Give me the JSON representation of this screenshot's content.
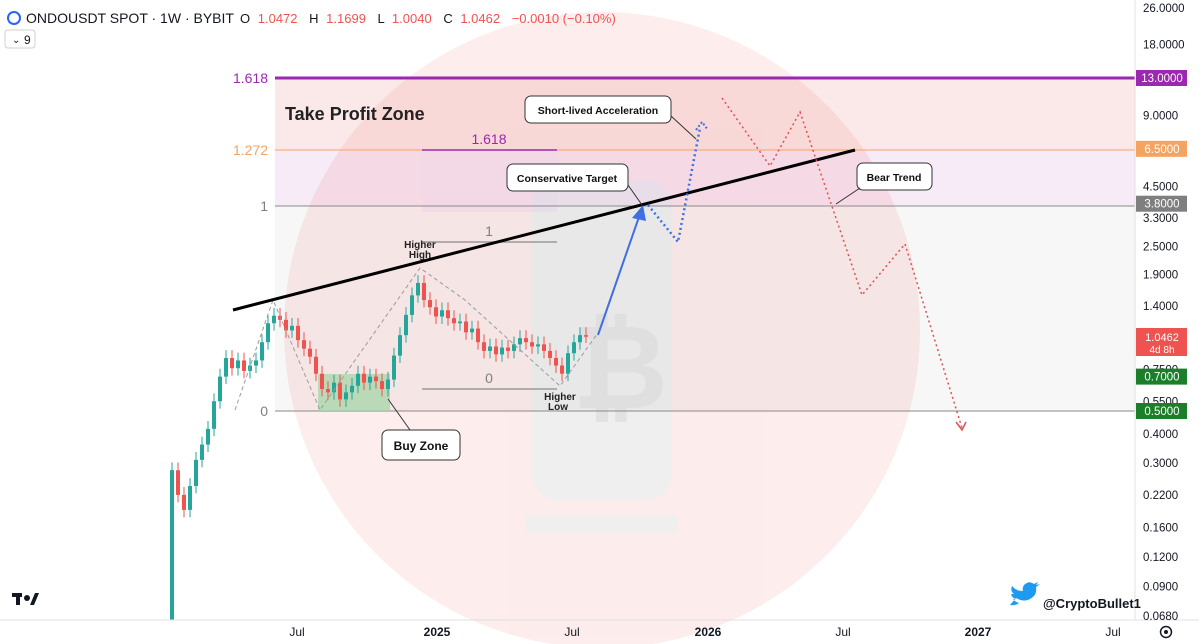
{
  "header": {
    "symbol": "ONDOUSDT SPOT · 1W · BYBIT",
    "o_label": "O",
    "o_value": "1.0472",
    "h_label": "H",
    "h_value": "1.1699",
    "l_label": "L",
    "l_value": "1.0040",
    "c_label": "C",
    "c_value": "1.0462",
    "change": "−0.0010 (−0.10%)",
    "indicator_toggle": "9"
  },
  "colors": {
    "up": "#26a69a",
    "down": "#ef5350",
    "fib_top": "#9c27b0",
    "fib_1272": "#f4a460",
    "label_gray": "#7f7f7f",
    "trendline": "#000000",
    "arrow_blue": "#3f6fe0",
    "projection_blue": "#3f6fe0",
    "projection_red": "#e05050",
    "price_red": "#ef5350",
    "price_green": "#1b7f2a"
  },
  "watermark": {
    "icon": "bitcoin-icon"
  },
  "branding": {
    "logo_icon": "tradingview-logo-icon",
    "twitter_icon": "twitter-icon",
    "handle": "@CryptoBullet1",
    "settings_icon": "gear-icon"
  },
  "chart_data": {
    "type": "candlestick",
    "scale": "log",
    "ylim": [
      0.068,
      26.0
    ],
    "y_ticks": [
      "26.0000",
      "18.0000",
      "13.0000",
      "9.0000",
      "6.5000",
      "4.5000",
      "3.8000",
      "3.3000",
      "2.5000",
      "1.9000",
      "1.4000",
      "1.0462",
      "0.7500",
      "0.7000",
      "0.5500",
      "0.5000",
      "0.4000",
      "0.3000",
      "0.2200",
      "0.1600",
      "0.1200",
      "0.0900",
      "0.0680"
    ],
    "x_ticks": [
      "Jul",
      "2025",
      "Jul",
      "2026",
      "Jul",
      "2027",
      "Jul"
    ],
    "last_price": "1.0462",
    "countdown": "4d 8h",
    "price_tags": [
      {
        "price": "13.0000",
        "color": "#9c27b0"
      },
      {
        "price": "6.5000",
        "color": "#f4a460"
      },
      {
        "price": "3.8000",
        "color": "#7f7f7f"
      },
      {
        "price": "0.7000",
        "color": "#1b7f2a"
      },
      {
        "price": "0.5000",
        "color": "#1b7f2a"
      }
    ],
    "fib_levels": [
      {
        "label": "1.618",
        "price": 13.0
      },
      {
        "label": "1.272",
        "price": 6.5
      },
      {
        "label": "1",
        "price": 3.8
      },
      {
        "label": "0",
        "price": 0.5
      }
    ],
    "inner_fib_levels": [
      {
        "label": "1.618",
        "price": 6.5
      },
      {
        "label": "1",
        "price": 2.7
      },
      {
        "label": "0",
        "price": 0.62
      }
    ],
    "annotations": {
      "take_profit": "Take Profit Zone",
      "short_lived": "Short-lived Acceleration",
      "conservative": "Conservative Target",
      "bear_trend": "Bear Trend",
      "buy_zone": "Buy Zone",
      "higher_high": [
        "Higher",
        "High"
      ],
      "higher_low": [
        "Higher",
        "Low"
      ]
    }
  }
}
